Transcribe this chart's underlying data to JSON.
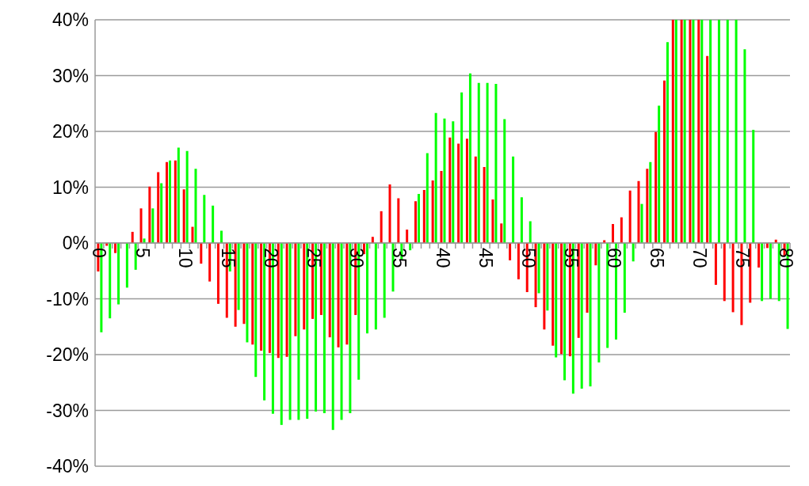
{
  "chart_data": {
    "type": "bar",
    "categories": [
      "0",
      null,
      null,
      null,
      null,
      "5",
      null,
      null,
      null,
      null,
      "10",
      null,
      null,
      null,
      null,
      "15",
      null,
      null,
      null,
      null,
      "20",
      null,
      null,
      null,
      null,
      "25",
      null,
      null,
      null,
      null,
      "30",
      null,
      null,
      null,
      null,
      "35",
      null,
      null,
      null,
      null,
      "40",
      null,
      null,
      null,
      null,
      "45",
      null,
      null,
      null,
      null,
      "50",
      null,
      null,
      null,
      null,
      "55",
      null,
      null,
      null,
      null,
      "60",
      null,
      null,
      null,
      null,
      "65",
      null,
      null,
      null,
      null,
      "70",
      null,
      null,
      null,
      null,
      "75",
      null,
      null,
      null,
      null,
      "80"
    ],
    "series": [
      {
        "color": "#ff0000",
        "values": [
          -5.1,
          -0.5,
          -1.8,
          0,
          2,
          6.2,
          10.1,
          12.7,
          14.5,
          14.8,
          9.6,
          2.9,
          -3.7,
          -6.9,
          -10.9,
          -13.4,
          -15,
          -14.5,
          -18.2,
          -19.3,
          -19.7,
          -20.6,
          -20.4,
          -16.7,
          -15.5,
          -13.6,
          -12.9,
          -16.9,
          -18.7,
          -18.2,
          -12.9,
          -2,
          1.1,
          5.7,
          10.5,
          8,
          2.4,
          7.5,
          9.5,
          11.2,
          12.9,
          18.9,
          17.8,
          18.7,
          15.5,
          13.6,
          7.8,
          3.5,
          -3.1,
          -6.5,
          -8.8,
          -11.5,
          -15.5,
          -18.4,
          -19.9,
          -20.3,
          -17,
          -12.5,
          -4,
          0.5,
          3.4,
          4.6,
          9.4,
          11.1,
          13.3,
          19.9,
          29.1,
          40,
          40,
          40,
          40,
          33.5,
          -7.5,
          -10.4,
          -12.4,
          -14.7,
          -10.7,
          -4.4,
          -0.9,
          0.6,
          -2.3
        ]
      },
      {
        "color": "#00ff00",
        "values": [
          -16,
          -13.5,
          -11,
          -8,
          -4.8,
          0.8,
          6.2,
          10.7,
          14.8,
          17.1,
          16.5,
          13.3,
          8.6,
          6.7,
          2.2,
          -5.1,
          -12,
          -17.8,
          -24,
          -28.2,
          -30.6,
          -32.6,
          -31.7,
          -31.7,
          -31.5,
          -30.2,
          -30.5,
          -33.5,
          -31.7,
          -30.5,
          -24.5,
          -16.2,
          -15.5,
          -13.4,
          -8.7,
          -3,
          -1.3,
          8.8,
          16.1,
          23.3,
          22.3,
          21.8,
          27,
          30.4,
          28.7,
          28.7,
          28.5,
          22.2,
          15.5,
          8.2,
          3.9,
          -9,
          -12.1,
          -20.5,
          -24.6,
          -27,
          -26.1,
          -25.7,
          -21.4,
          -18.8,
          -17.3,
          -12.5,
          -3.3,
          7,
          14.5,
          24.6,
          36,
          40,
          40,
          40,
          40,
          40,
          40,
          40,
          40,
          34.7,
          20.3,
          -10.4,
          -10,
          -10.4,
          -15.4
        ]
      }
    ],
    "ylim": [
      -40,
      40
    ],
    "yticks": [
      {
        "value": -40,
        "label": "-40%"
      },
      {
        "value": -30,
        "label": "-30%"
      },
      {
        "value": -20,
        "label": "-20%"
      },
      {
        "value": -10,
        "label": "-10%"
      },
      {
        "value": 0,
        "label": "0%"
      },
      {
        "value": 10,
        "label": "10%"
      },
      {
        "value": 20,
        "label": "20%"
      },
      {
        "value": 30,
        "label": "30%"
      },
      {
        "value": 40,
        "label": "40%"
      }
    ],
    "grid": "y"
  }
}
